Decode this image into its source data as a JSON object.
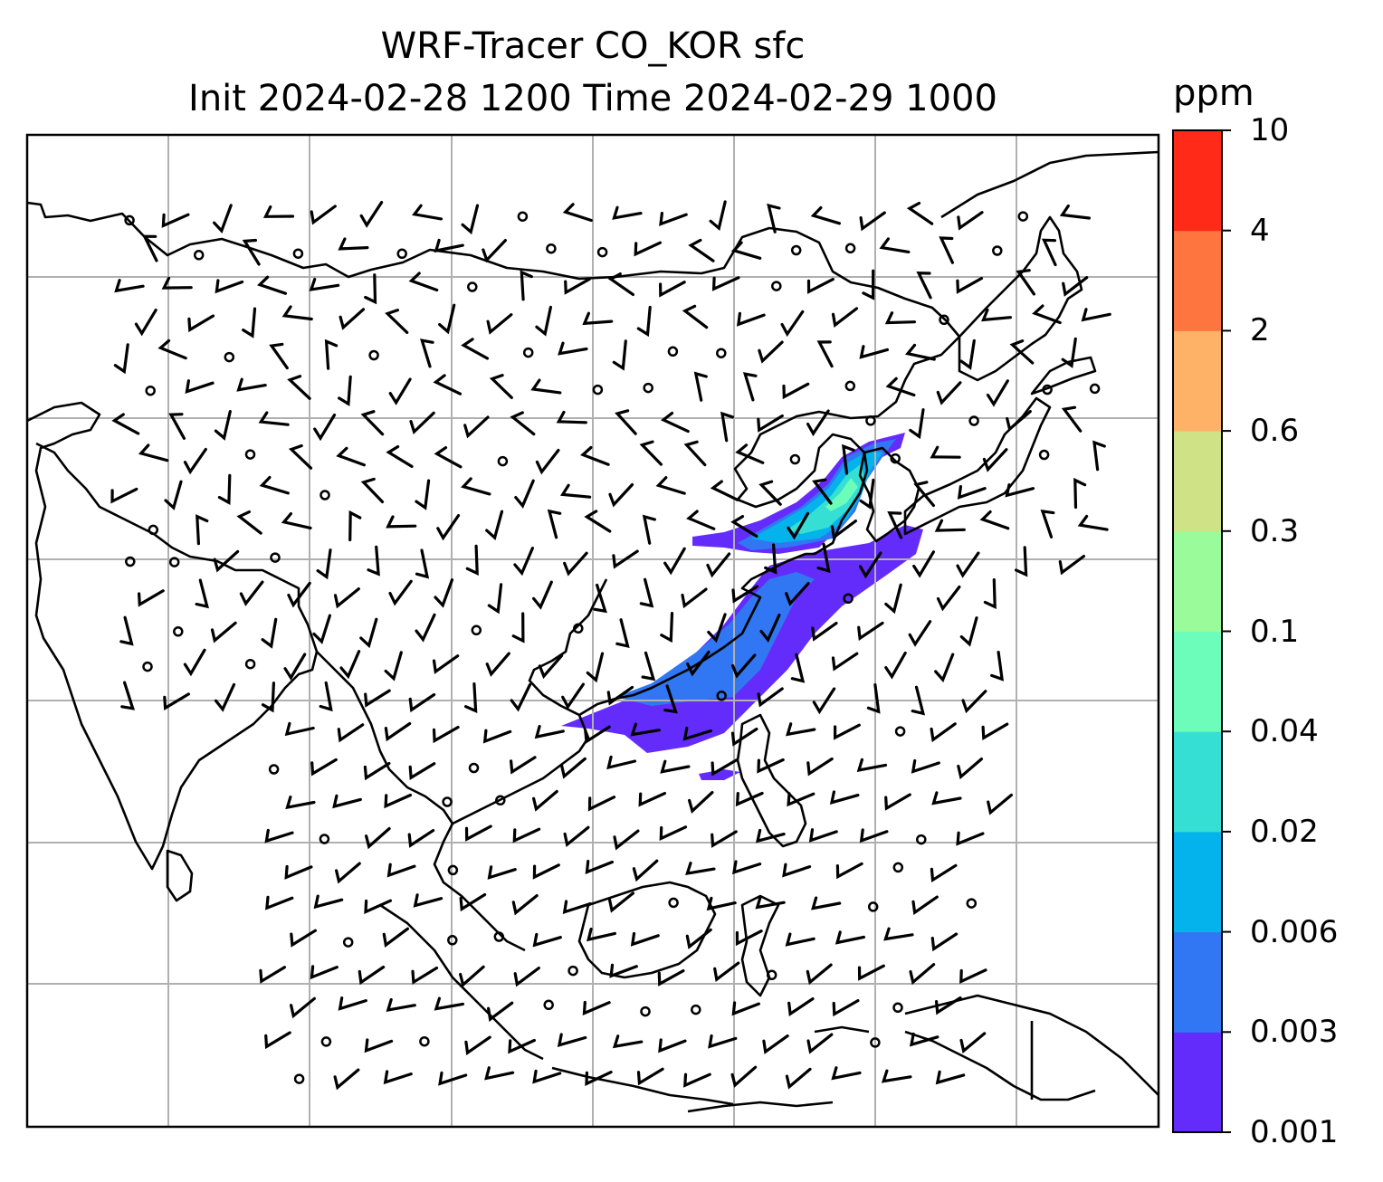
{
  "title": {
    "line1": "WRF-Tracer CO_KOR sfc",
    "line2": "Init 2024-02-28 1200 Time 2024-02-29 1000"
  },
  "colorbar": {
    "unit": "ppm",
    "ticks": [
      "0.001",
      "0.003",
      "0.006",
      "0.02",
      "0.04",
      "0.1",
      "0.3",
      "0.6",
      "2",
      "4",
      "10"
    ],
    "colors": [
      "#642cfb",
      "#3177f3",
      "#04b2ec",
      "#35dfd4",
      "#6cfdbb",
      "#9afb9b",
      "#d0e286",
      "#fdb267",
      "#fe7540",
      "#ff2b18"
    ]
  },
  "chart_data": {
    "type": "heatmap",
    "variable": "CO_KOR surface tracer concentration",
    "levels": [
      0.001,
      0.003,
      0.006,
      0.02,
      0.04,
      0.1,
      0.3,
      0.6,
      2,
      4,
      10
    ],
    "overlays": [
      "coastlines",
      "lat-lon gridlines",
      "wind barbs"
    ],
    "grid": true
  }
}
